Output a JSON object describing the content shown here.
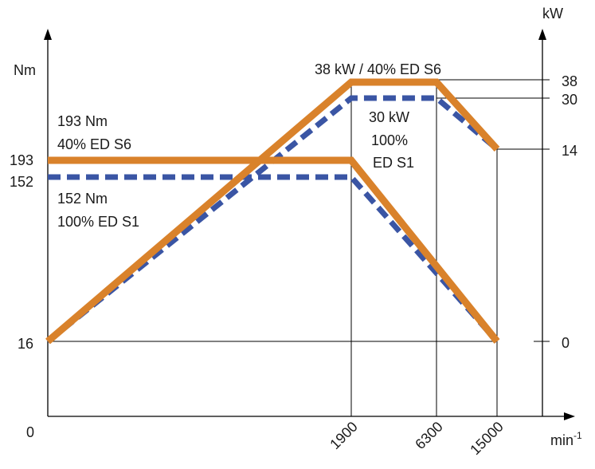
{
  "chart_data": {
    "type": "line",
    "left_axis": {
      "unit": "Nm",
      "ticks": [
        "193",
        "152",
        "16",
        "0"
      ]
    },
    "right_axis": {
      "unit": "kW",
      "ticks": [
        "38",
        "30",
        "14",
        "0"
      ]
    },
    "x_axis": {
      "unit": "min",
      "unit_exponent": "-1",
      "ticks": [
        "1900",
        "6300",
        "15000"
      ]
    },
    "series": [
      {
        "name": "Torque 40% ED S6",
        "color": "#D9822B",
        "style": "solid",
        "axis": "left",
        "points": [
          [
            0,
            193
          ],
          [
            1900,
            193
          ],
          [
            15000,
            16
          ]
        ]
      },
      {
        "name": "Torque 100% ED S1",
        "color": "#3A55A4",
        "style": "dashed",
        "axis": "left",
        "points": [
          [
            0,
            152
          ],
          [
            1900,
            152
          ],
          [
            15000,
            16
          ]
        ]
      },
      {
        "name": "Power 40% ED S6",
        "color": "#D9822B",
        "style": "solid",
        "axis": "right",
        "points": [
          [
            0,
            0
          ],
          [
            1900,
            38
          ],
          [
            6300,
            38
          ],
          [
            15000,
            14
          ]
        ]
      },
      {
        "name": "Power 100% ED S1",
        "color": "#3A55A4",
        "style": "dashed",
        "axis": "right",
        "points": [
          [
            0,
            0
          ],
          [
            1900,
            30
          ],
          [
            6300,
            30
          ],
          [
            15000,
            14
          ]
        ]
      }
    ],
    "annotations": {
      "torque_s6": [
        "193 Nm",
        "40% ED S6"
      ],
      "torque_s1": [
        "152 Nm",
        "100% ED S1"
      ],
      "power_s6": "38 kW / 40% ED S6",
      "power_s1": [
        "30 kW",
        "100%",
        "ED S1"
      ]
    }
  }
}
